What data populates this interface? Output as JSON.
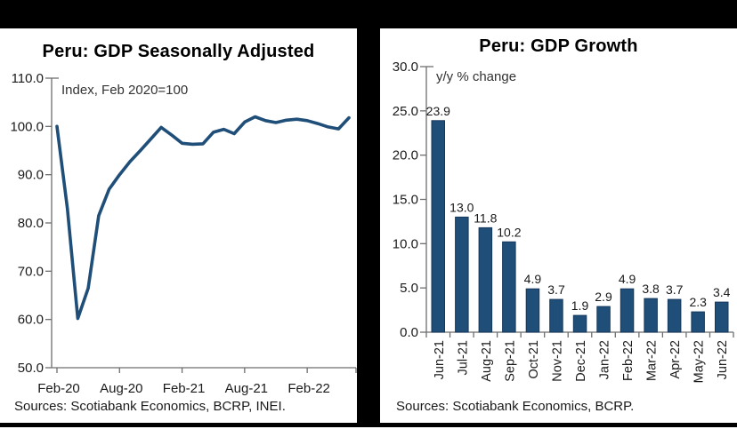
{
  "colors": {
    "series_navy": "#1F4E79",
    "bar_edge": "#16375B",
    "axis_gray": "#6e6e6e",
    "frame_black": "#000000"
  },
  "chart_data": [
    {
      "type": "line",
      "title": "Peru: GDP Seasonally Adjusted",
      "annotation": "Index, Feb 2020=100",
      "source": "Sources: Scotiabank Economics, BCRP, INEI.",
      "x": [
        "Feb-20",
        "Mar-20",
        "Apr-20",
        "May-20",
        "Jun-20",
        "Jul-20",
        "Aug-20",
        "Sep-20",
        "Oct-20",
        "Nov-20",
        "Dec-20",
        "Jan-21",
        "Feb-21",
        "Mar-21",
        "Apr-21",
        "May-21",
        "Jun-21",
        "Jul-21",
        "Aug-21",
        "Sep-21",
        "Oct-21",
        "Nov-21",
        "Dec-21",
        "Jan-22",
        "Feb-22",
        "Mar-22",
        "Apr-22",
        "May-22",
        "Jun-22"
      ],
      "values": [
        100.0,
        83.0,
        60.2,
        66.5,
        81.5,
        87.0,
        90.0,
        92.7,
        95.0,
        97.4,
        99.8,
        98.2,
        96.5,
        96.3,
        96.4,
        98.8,
        99.4,
        98.5,
        100.9,
        102.0,
        101.2,
        100.8,
        101.3,
        101.5,
        101.2,
        100.6,
        99.9,
        99.5,
        101.8
      ],
      "ylim": [
        50,
        110
      ],
      "yticks": [
        110,
        100,
        90,
        80,
        70,
        60,
        50
      ],
      "xticks_shown": [
        "Feb-20",
        "Aug-20",
        "Feb-21",
        "Aug-21",
        "Feb-22"
      ],
      "xtick_indices": [
        0,
        6,
        12,
        18,
        24
      ],
      "grid": "off",
      "legend": "none",
      "line_color": "#1F4E79"
    },
    {
      "type": "bar",
      "title": "Peru: GDP Growth",
      "annotation": "y/y % change",
      "source": "Sources: Scotiabank Economics, BCRP.",
      "categories": [
        "Jun-21",
        "Jul-21",
        "Aug-21",
        "Sep-21",
        "Oct-21",
        "Nov-21",
        "Dec-21",
        "Jan-22",
        "Feb-22",
        "Mar-22",
        "Apr-22",
        "May-22",
        "Jun-22"
      ],
      "values": [
        23.9,
        13.0,
        11.8,
        10.2,
        4.9,
        3.7,
        1.9,
        2.9,
        4.9,
        3.8,
        3.7,
        2.3,
        3.4
      ],
      "data_labels": [
        "23.9",
        "13.0",
        "11.8",
        "10.2",
        "4.9",
        "3.7",
        "1.9",
        "2.9",
        "4.9",
        "3.8",
        "3.7",
        "2.3",
        "3.4"
      ],
      "ylim": [
        0,
        30
      ],
      "yticks": [
        30,
        25,
        20,
        15,
        10,
        5,
        0
      ],
      "grid": "off",
      "legend": "none",
      "bar_color": "#1F4E79"
    }
  ]
}
